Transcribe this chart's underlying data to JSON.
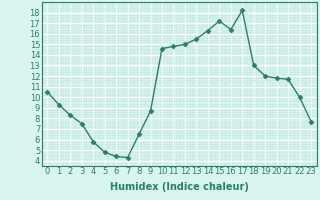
{
  "x": [
    0,
    1,
    2,
    3,
    4,
    5,
    6,
    7,
    8,
    9,
    10,
    11,
    12,
    13,
    14,
    15,
    16,
    17,
    18,
    19,
    20,
    21,
    22,
    23
  ],
  "y": [
    10.5,
    9.3,
    8.3,
    7.5,
    5.8,
    4.8,
    4.4,
    4.3,
    6.5,
    8.7,
    14.6,
    14.8,
    15.0,
    15.5,
    16.3,
    17.2,
    16.4,
    18.2,
    13.0,
    12.0,
    11.8,
    11.7,
    10.0,
    7.7
  ],
  "line_color": "#2d7d6e",
  "marker": "D",
  "marker_size": 2.5,
  "grid_color": "#ffffff",
  "grid_minor_color": "#c8eae4",
  "xlabel": "Humidex (Indice chaleur)",
  "xlim": [
    -0.5,
    23.5
  ],
  "ylim": [
    3.5,
    19
  ],
  "yticks": [
    4,
    5,
    6,
    7,
    8,
    9,
    10,
    11,
    12,
    13,
    14,
    15,
    16,
    17,
    18
  ],
  "xticks": [
    0,
    1,
    2,
    3,
    4,
    5,
    6,
    7,
    8,
    9,
    10,
    11,
    12,
    13,
    14,
    15,
    16,
    17,
    18,
    19,
    20,
    21,
    22,
    23
  ],
  "xlabel_fontsize": 7,
  "tick_fontsize": 6,
  "line_width": 1.0,
  "ax_bg_color": "#d9f5f0",
  "fig_bg_color": "#d9f5f0",
  "spine_color": "#2d7d6e"
}
